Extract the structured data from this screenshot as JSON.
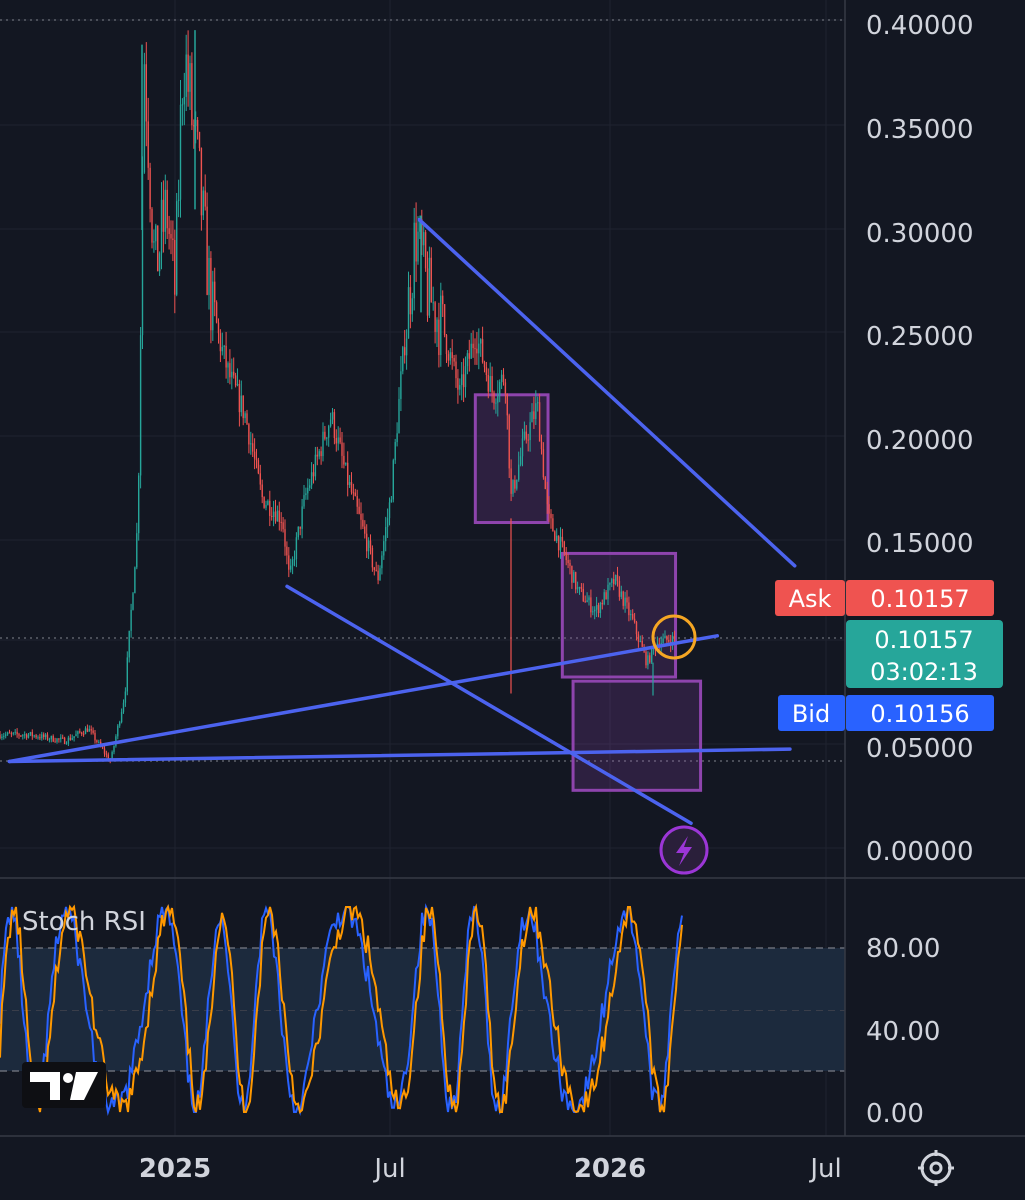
{
  "chart_data": [
    {
      "type": "candlestick",
      "title": "",
      "x_ticks": [
        "2025",
        "Jul",
        "2026",
        "Jul"
      ],
      "y_ticks": [
        "0.40000",
        "0.35000",
        "0.30000",
        "0.25000",
        "0.20000",
        "0.15000",
        "0.05000",
        "0.00000"
      ],
      "ylim": [
        0.0,
        0.4
      ],
      "grid": true,
      "price_path": [
        [
          "2024-09-01",
          0.055
        ],
        [
          "2024-10-01",
          0.052
        ],
        [
          "2024-10-20",
          0.058
        ],
        [
          "2024-11-08",
          0.042
        ],
        [
          "2024-11-20",
          0.075
        ],
        [
          "2024-12-01",
          0.16
        ],
        [
          "2024-12-06",
          0.39
        ],
        [
          "2024-12-15",
          0.28
        ],
        [
          "2024-12-25",
          0.31
        ],
        [
          "2025-01-01",
          0.27
        ],
        [
          "2025-01-08",
          0.39
        ],
        [
          "2025-01-20",
          0.33
        ],
        [
          "2025-02-01",
          0.26
        ],
        [
          "2025-02-15",
          0.23
        ],
        [
          "2025-03-01",
          0.21
        ],
        [
          "2025-03-15",
          0.17
        ],
        [
          "2025-04-01",
          0.16
        ],
        [
          "2025-04-07",
          0.13
        ],
        [
          "2025-04-20",
          0.17
        ],
        [
          "2025-05-01",
          0.19
        ],
        [
          "2025-05-12",
          0.21
        ],
        [
          "2025-05-25",
          0.18
        ],
        [
          "2025-06-10",
          0.15
        ],
        [
          "2025-06-20",
          0.13
        ],
        [
          "2025-07-01",
          0.17
        ],
        [
          "2025-07-10",
          0.23
        ],
        [
          "2025-07-22",
          0.3
        ],
        [
          "2025-08-01",
          0.27
        ],
        [
          "2025-08-15",
          0.25
        ],
        [
          "2025-08-28",
          0.22
        ],
        [
          "2025-09-10",
          0.25
        ],
        [
          "2025-09-25",
          0.22
        ],
        [
          "2025-10-05",
          0.23
        ],
        [
          "2025-10-10",
          0.17
        ],
        [
          "2025-10-20",
          0.195
        ],
        [
          "2025-11-01",
          0.215
        ],
        [
          "2025-11-10",
          0.16
        ],
        [
          "2025-11-22",
          0.145
        ],
        [
          "2025-12-05",
          0.125
        ],
        [
          "2025-12-20",
          0.115
        ],
        [
          "2026-01-05",
          0.13
        ],
        [
          "2026-01-20",
          0.11
        ],
        [
          "2026-02-01",
          0.09
        ],
        [
          "2026-02-10",
          0.1
        ],
        [
          "2026-02-25",
          0.10157
        ]
      ],
      "trendlines": [
        {
          "from": [
            "2025-07-25",
            0.305
          ],
          "to": [
            "2026-06-05",
            0.137
          ],
          "color": "#4c63ef"
        },
        {
          "from": [
            "2025-04-05",
            0.127
          ],
          "to": [
            "2026-03-10",
            0.012
          ],
          "color": "#4c63ef"
        },
        {
          "from": [
            "2024-08-15",
            0.042
          ],
          "to": [
            "2026-04-01",
            0.103
          ],
          "color": "#4c63ef"
        },
        {
          "from": [
            "2024-08-15",
            0.042
          ],
          "to": [
            "2026-06-01",
            0.048
          ],
          "color": "#4c63ef"
        }
      ],
      "zones": [
        {
          "from": [
            "2025-09-10",
            0.22
          ],
          "to": [
            "2025-11-10",
            0.158
          ],
          "color": "#8e44ad"
        },
        {
          "from": [
            "2025-11-22",
            0.143
          ],
          "to": [
            "2026-02-25",
            0.083
          ],
          "color": "#8e44ad"
        },
        {
          "from": [
            "2025-12-01",
            0.081
          ],
          "to": [
            "2026-03-18",
            0.028
          ],
          "color": "#8e44ad"
        }
      ],
      "price_labels": {
        "ask_label": "Ask",
        "ask_value": "0.10157",
        "last_value": "0.10157",
        "countdown": "03:02:13",
        "bid_label": "Bid",
        "bid_value": "0.10156"
      },
      "colors": {
        "up": "#26a69a",
        "down": "#ef5350",
        "trend": "#4c63ef",
        "zone": "#8e44ad",
        "highlight": "#f5a623"
      }
    },
    {
      "type": "line",
      "title": "Stoch RSI",
      "y_ticks": [
        "80.00",
        "40.00",
        "0.00"
      ],
      "ylim": [
        0,
        100
      ],
      "band": [
        20,
        80
      ],
      "series": [
        {
          "color": "#2962ff"
        },
        {
          "color": "#ff9800"
        }
      ]
    }
  ],
  "footer": {
    "settings_icon": "gear-icon",
    "logo": "TV"
  }
}
